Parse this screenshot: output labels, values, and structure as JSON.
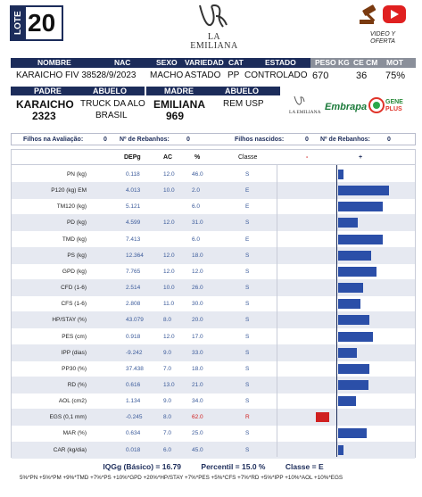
{
  "lote": {
    "tag": "LOTE",
    "number": "20"
  },
  "brand": {
    "name": "LA EMILIANA",
    "name_top": "LA",
    "name_bottom": "EMILIANA"
  },
  "video": {
    "line1": "VIDEO Y",
    "line2": "OFERTA",
    "colors": {
      "play": "#e02020",
      "hammer": "#7a3a10"
    }
  },
  "animal_header": [
    "NOMBRE",
    "NAC",
    "SEXO",
    "VARIEDAD",
    "CAT",
    "ESTADO",
    "PESO KG",
    "CE CM",
    "MOT"
  ],
  "animal": {
    "nombre": "KARAICHO FIV 3852",
    "nac": "28/9/2023",
    "sexo": "MACHO",
    "variedad": "ASTADO",
    "cat": "PP",
    "estado": "CONTROLADO",
    "peso": "670",
    "ce": "36",
    "mot": "75%"
  },
  "pedigree_header": {
    "padre": "PADRE",
    "abuelo1": "ABUELO",
    "madre": "MADRE",
    "abuelo2": "ABUELO"
  },
  "pedigree": {
    "padre_name": "KARAICHO",
    "padre_id": "2323",
    "abuelo1_line1": "TRUCK DA ALO",
    "abuelo1_line2": "BRASIL",
    "madre_name": "EMILIANA",
    "madre_id": "969",
    "abuelo2": "REM USP"
  },
  "partners": {
    "laemiliana": "LA EMILIANA",
    "embrapa": "Embrapa",
    "geneplus_1": "GENE",
    "geneplus_2": "PLUS"
  },
  "stats": {
    "filhos_eval_label": "Filhos na Avaliação:",
    "filhos_eval": "0",
    "rebanhos_label_1": "Nº de Rebanhos:",
    "rebanhos_1": "0",
    "filhos_nasc_label": "Filhos nascidos:",
    "filhos_nasc": "0",
    "rebanhos_label_2": "Nº de Rebanhos:",
    "rebanhos_2": "0"
  },
  "table_header": {
    "dep": "DEPg",
    "ac": "AC",
    "pct": "%",
    "cls": "Classe",
    "minus": "-",
    "plus": "+"
  },
  "traits": [
    {
      "label": "PN (kg)",
      "dep": "0.118",
      "ac": "12.0",
      "pct": "46.0",
      "cls": "S",
      "bar": 0.09
    },
    {
      "label": "P120 (kg) EM",
      "dep": "4.013",
      "ac": "10.0",
      "pct": "2.0",
      "cls": "E",
      "bar": 0.81
    },
    {
      "label": "TM120 (kg)",
      "dep": "5.121",
      "ac": "",
      "pct": "6.0",
      "cls": "E",
      "bar": 0.72
    },
    {
      "label": "PD (kg)",
      "dep": "4.599",
      "ac": "12.0",
      "pct": "31.0",
      "cls": "S",
      "bar": 0.31
    },
    {
      "label": "TMD (kg)",
      "dep": "7.413",
      "ac": "",
      "pct": "6.0",
      "cls": "E",
      "bar": 0.72
    },
    {
      "label": "PS (kg)",
      "dep": "12.364",
      "ac": "12.0",
      "pct": "18.0",
      "cls": "S",
      "bar": 0.53
    },
    {
      "label": "GPD (kg)",
      "dep": "7.765",
      "ac": "12.0",
      "pct": "12.0",
      "cls": "S",
      "bar": 0.62
    },
    {
      "label": "CFD (1-6)",
      "dep": "2.514",
      "ac": "10.0",
      "pct": "26.0",
      "cls": "S",
      "bar": 0.4
    },
    {
      "label": "CFS (1-6)",
      "dep": "2.808",
      "ac": "11.0",
      "pct": "30.0",
      "cls": "S",
      "bar": 0.35
    },
    {
      "label": "HP/STAY (%)",
      "dep": "43.079",
      "ac": "8.0",
      "pct": "20.0",
      "cls": "S",
      "bar": 0.5
    },
    {
      "label": "PES (cm)",
      "dep": "0.918",
      "ac": "12.0",
      "pct": "17.0",
      "cls": "S",
      "bar": 0.55
    },
    {
      "label": "IPP (dias)",
      "dep": "-9.242",
      "ac": "9.0",
      "pct": "33.0",
      "cls": "S",
      "bar": 0.3
    },
    {
      "label": "PP30 (%)",
      "dep": "37.438",
      "ac": "7.0",
      "pct": "18.0",
      "cls": "S",
      "bar": 0.5
    },
    {
      "label": "RD (%)",
      "dep": "0.616",
      "ac": "13.0",
      "pct": "21.0",
      "cls": "S",
      "bar": 0.48
    },
    {
      "label": "AOL (cm2)",
      "dep": "1.134",
      "ac": "9.0",
      "pct": "34.0",
      "cls": "S",
      "bar": 0.29
    },
    {
      "label": "EGS (0,1 mm)",
      "dep": "-0.245",
      "ac": "8.0",
      "pct": "62.0",
      "cls": "R",
      "bar": -0.22
    },
    {
      "label": "MAR (%)",
      "dep": "0.634",
      "ac": "7.0",
      "pct": "25.0",
      "cls": "S",
      "bar": 0.45
    },
    {
      "label": "CAR (kg/dia)",
      "dep": "0.018",
      "ac": "6.0",
      "pct": "45.0",
      "cls": "S",
      "bar": 0.09
    }
  ],
  "summary": {
    "iqgg": "IQGg (Básico) = 16.79",
    "percentil": "Percentil = 15.0 %",
    "classe": "Classe = E"
  },
  "formula": "5%*PN +5%*PM +9%*TMD +7%*PS +10%*GPD +20%*HP/STAY +7%*PES +5%*CFS +7%*RD +5%*IPP +10%*AOL +10%*EGS"
}
